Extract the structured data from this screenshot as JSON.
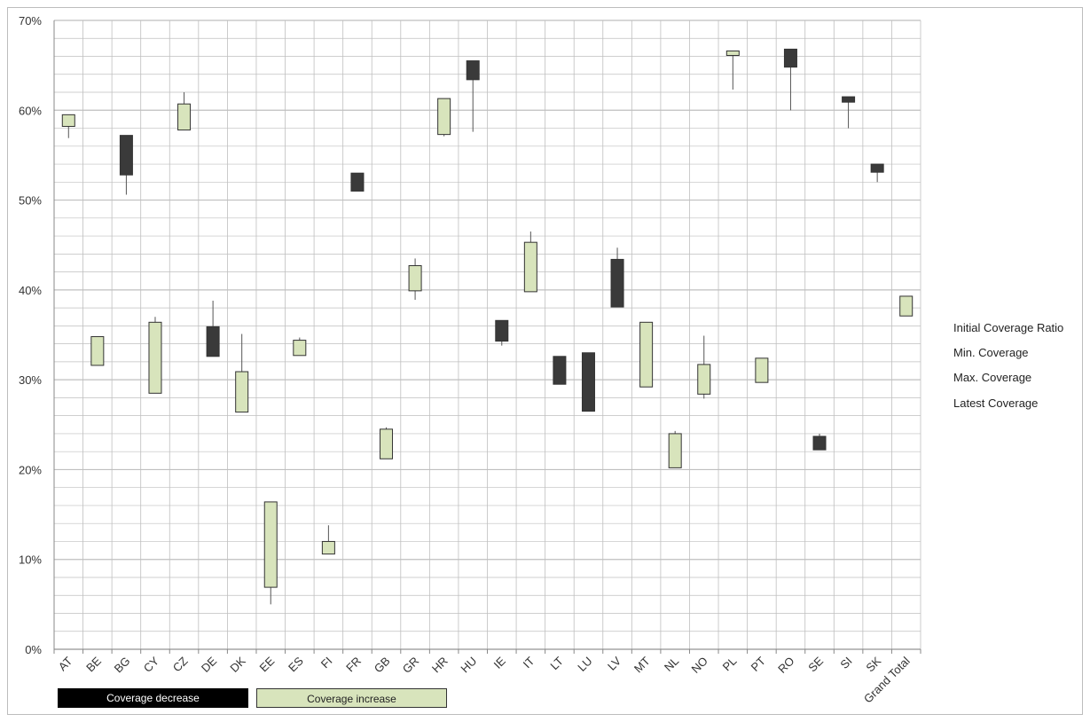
{
  "chart_data": {
    "type": "candlestick",
    "title": "",
    "xlabel": "",
    "ylabel": "",
    "ylim": [
      0,
      70
    ],
    "y_tick_labels": [
      "0%",
      "10%",
      "20%",
      "30%",
      "40%",
      "50%",
      "60%",
      "70%"
    ],
    "y_ticks": [
      0,
      10,
      20,
      30,
      40,
      50,
      60,
      70
    ],
    "grid": true,
    "legend_position": "right",
    "legend": [
      "Initial Coverage Ratio",
      "Min. Coverage",
      "Max. Coverage",
      "Latest Coverage"
    ],
    "colors": {
      "decrease": "#3a3a3a",
      "increase": "#d8e4bc",
      "line": "#555555",
      "grid": "#bfbfbf"
    },
    "key": {
      "decrease_label": "Coverage decrease",
      "increase_label": "Coverage increase"
    },
    "categories": [
      "AT",
      "BE",
      "BG",
      "CY",
      "CZ",
      "DE",
      "DK",
      "EE",
      "ES",
      "FI",
      "FR",
      "GB",
      "GR",
      "HR",
      "HU",
      "IE",
      "IT",
      "LT",
      "LU",
      "LV",
      "MT",
      "NL",
      "NO",
      "PL",
      "PT",
      "RO",
      "SE",
      "SI",
      "SK",
      "Grand Total"
    ],
    "series": [
      {
        "name": "Initial Coverage Ratio",
        "values": [
          58.2,
          31.6,
          57.2,
          28.5,
          57.8,
          35.9,
          26.4,
          6.9,
          32.7,
          10.6,
          53.0,
          21.2,
          39.9,
          57.3,
          65.5,
          36.6,
          39.8,
          32.6,
          33.0,
          43.4,
          29.2,
          20.2,
          28.4,
          66.1,
          29.7,
          66.8,
          23.7,
          61.5,
          54.0,
          37.1
        ]
      },
      {
        "name": "Min. Coverage",
        "values": [
          56.9,
          31.6,
          50.6,
          28.5,
          57.8,
          32.6,
          26.4,
          5.0,
          32.7,
          10.6,
          51.0,
          21.2,
          38.9,
          57.1,
          57.6,
          33.8,
          39.8,
          29.5,
          26.5,
          38.1,
          29.2,
          20.2,
          27.9,
          62.3,
          29.7,
          60.0,
          22.2,
          58.0,
          52.0,
          37.1
        ]
      },
      {
        "name": "Max. Coverage",
        "values": [
          59.5,
          34.8,
          57.2,
          37.0,
          62.0,
          38.8,
          35.1,
          16.4,
          34.7,
          13.8,
          53.0,
          24.7,
          43.5,
          61.3,
          65.5,
          36.6,
          46.5,
          32.6,
          33.0,
          44.7,
          36.4,
          24.3,
          34.9,
          66.6,
          32.4,
          66.8,
          24.0,
          61.5,
          54.0,
          39.3
        ]
      },
      {
        "name": "Latest Coverage",
        "values": [
          59.5,
          34.8,
          52.8,
          36.4,
          60.7,
          32.6,
          30.9,
          16.4,
          34.4,
          12.0,
          51.0,
          24.5,
          42.7,
          61.3,
          63.4,
          34.3,
          45.3,
          29.5,
          26.5,
          38.1,
          36.4,
          24.0,
          31.7,
          66.6,
          32.4,
          64.8,
          22.2,
          60.9,
          53.1,
          39.3
        ]
      }
    ]
  }
}
